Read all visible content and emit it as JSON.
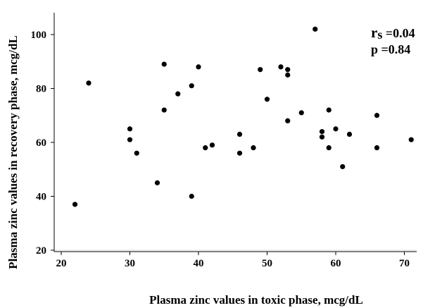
{
  "chart_data": {
    "type": "scatter",
    "xlabel": "Plasma zinc values in toxic phase, mcg/dL",
    "ylabel": "Plasma zinc values in recovery phase, mcg/dL",
    "xlim": [
      20,
      72
    ],
    "ylim": [
      20,
      105
    ],
    "x_ticks": [
      20,
      30,
      40,
      50,
      60,
      70
    ],
    "y_ticks": [
      20,
      40,
      60,
      80,
      100
    ],
    "grid": false,
    "annotations": {
      "rs_symbol": "r",
      "rs_subscript": "s",
      "rs_value": " =0.04",
      "p_text": "p =0.84"
    },
    "points": [
      {
        "x": 22,
        "y": 37
      },
      {
        "x": 24,
        "y": 82
      },
      {
        "x": 30,
        "y": 65
      },
      {
        "x": 30,
        "y": 61
      },
      {
        "x": 31,
        "y": 56
      },
      {
        "x": 34,
        "y": 45
      },
      {
        "x": 35,
        "y": 89
      },
      {
        "x": 35,
        "y": 72
      },
      {
        "x": 37,
        "y": 78
      },
      {
        "x": 39,
        "y": 81
      },
      {
        "x": 39,
        "y": 40
      },
      {
        "x": 40,
        "y": 88
      },
      {
        "x": 41,
        "y": 58
      },
      {
        "x": 42,
        "y": 59
      },
      {
        "x": 46,
        "y": 63
      },
      {
        "x": 46,
        "y": 56
      },
      {
        "x": 48,
        "y": 58
      },
      {
        "x": 49,
        "y": 87
      },
      {
        "x": 50,
        "y": 76
      },
      {
        "x": 52,
        "y": 88
      },
      {
        "x": 53,
        "y": 87
      },
      {
        "x": 53,
        "y": 85
      },
      {
        "x": 53,
        "y": 68
      },
      {
        "x": 55,
        "y": 71
      },
      {
        "x": 57,
        "y": 102
      },
      {
        "x": 58,
        "y": 64
      },
      {
        "x": 58,
        "y": 62
      },
      {
        "x": 59,
        "y": 72
      },
      {
        "x": 59,
        "y": 58
      },
      {
        "x": 60,
        "y": 65
      },
      {
        "x": 61,
        "y": 51
      },
      {
        "x": 62,
        "y": 63
      },
      {
        "x": 66,
        "y": 70
      },
      {
        "x": 66,
        "y": 58
      },
      {
        "x": 71,
        "y": 61
      }
    ]
  }
}
